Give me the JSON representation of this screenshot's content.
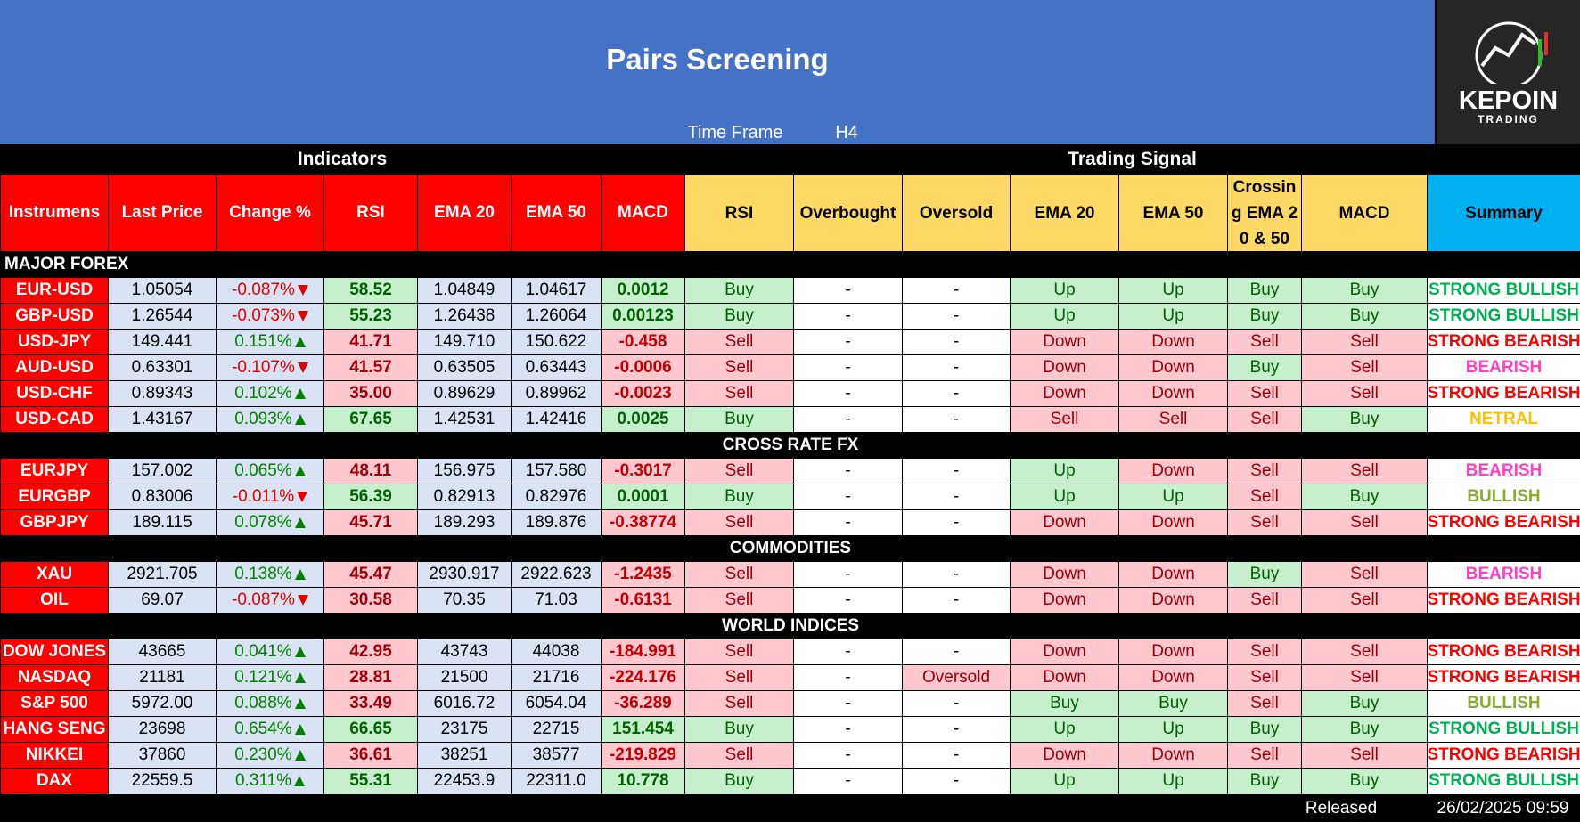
{
  "header": {
    "title": "Pairs Screening",
    "time_frame_label": "Time Frame",
    "time_frame": "H4",
    "logo": {
      "name": "KEPOIN",
      "tagline": "TRADING"
    }
  },
  "groups": {
    "indicators": "Indicators",
    "signals": "Trading Signal"
  },
  "columns": {
    "indicators": [
      "Instrumens",
      "Last Price",
      "Change %",
      "RSI",
      "EMA 20",
      "EMA 50",
      "MACD"
    ],
    "signals": [
      "RSI",
      "Overbought",
      "Oversold",
      "EMA 20",
      "EMA 50",
      "Crossing EMA 20 & 50",
      "MACD",
      "Summary"
    ]
  },
  "colors": {
    "indicator_header": "#ff0000",
    "signal_header": "#ffd966",
    "summary_header": "#00b0f0",
    "instrument": "#ff0000",
    "value_cell": "#dae3f3",
    "positive_bg": "#c6efce",
    "positive_fg": "#006100",
    "negative_bg": "#ffc7ce",
    "negative_fg": "#c00000",
    "up_text": "#008000",
    "down_text": "#e00000"
  },
  "signal_colors": {
    "Buy": [
      "#c6efce",
      "#006100"
    ],
    "Up": [
      "#c6efce",
      "#006100"
    ],
    "Sell": [
      "#ffc7ce",
      "#9c0006"
    ],
    "Down": [
      "#ffc7ce",
      "#9c0006"
    ],
    "Oversold": [
      "#ffc7ce",
      "#9c0006"
    ],
    "-": [
      "#ffffff",
      "#000000"
    ]
  },
  "summary_colors": {
    "STRONG BULLISH": "#00b050",
    "STRONG BEARISH": "#ff0000",
    "BEARISH": "#ff3fbf",
    "BULLISH": "#8aac2e",
    "NETRAL": "#ffc000"
  },
  "table": {
    "sections": [
      {
        "title": "MAJOR FOREX",
        "rows": [
          {
            "instrument": "EUR-USD",
            "last_price": "1.05054",
            "change": "-0.087%",
            "rsi": "58.52",
            "ema20": "1.04849",
            "ema50": "1.04617",
            "macd": "0.0012",
            "signals": [
              "Buy",
              "-",
              "-",
              "Up",
              "Up",
              "Buy",
              "Buy"
            ],
            "summary": "STRONG BULLISH"
          },
          {
            "instrument": "GBP-USD",
            "last_price": "1.26544",
            "change": "-0.073%",
            "rsi": "55.23",
            "ema20": "1.26438",
            "ema50": "1.26064",
            "macd": "0.00123",
            "signals": [
              "Buy",
              "-",
              "-",
              "Up",
              "Up",
              "Buy",
              "Buy"
            ],
            "summary": "STRONG BULLISH"
          },
          {
            "instrument": "USD-JPY",
            "last_price": "149.441",
            "change": "0.151%",
            "rsi": "41.71",
            "ema20": "149.710",
            "ema50": "150.622",
            "macd": "-0.458",
            "signals": [
              "Sell",
              "-",
              "-",
              "Down",
              "Down",
              "Sell",
              "Sell"
            ],
            "summary": "STRONG BEARISH"
          },
          {
            "instrument": "AUD-USD",
            "last_price": "0.63301",
            "change": "-0.107%",
            "rsi": "41.57",
            "ema20": "0.63505",
            "ema50": "0.63443",
            "macd": "-0.0006",
            "signals": [
              "Sell",
              "-",
              "-",
              "Down",
              "Down",
              "Buy",
              "Sell"
            ],
            "summary": "BEARISH"
          },
          {
            "instrument": "USD-CHF",
            "last_price": "0.89343",
            "change": "0.102%",
            "rsi": "35.00",
            "ema20": "0.89629",
            "ema50": "0.89962",
            "macd": "-0.0023",
            "signals": [
              "Sell",
              "-",
              "-",
              "Down",
              "Down",
              "Sell",
              "Sell"
            ],
            "summary": "STRONG BEARISH"
          },
          {
            "instrument": "USD-CAD",
            "last_price": "1.43167",
            "change": "0.093%",
            "rsi": "67.65",
            "ema20": "1.42531",
            "ema50": "1.42416",
            "macd": "0.0025",
            "signals": [
              "Buy",
              "-",
              "-",
              "Sell",
              "Sell",
              "Sell",
              "Buy"
            ],
            "summary": "NETRAL"
          }
        ]
      },
      {
        "title": "CROSS RATE FX",
        "rows": [
          {
            "instrument": "EURJPY",
            "last_price": "157.002",
            "change": "0.065%",
            "rsi": "48.11",
            "ema20": "156.975",
            "ema50": "157.580",
            "macd": "-0.3017",
            "signals": [
              "Sell",
              "-",
              "-",
              "Up",
              "Down",
              "Sell",
              "Sell"
            ],
            "summary": "BEARISH"
          },
          {
            "instrument": "EURGBP",
            "last_price": "0.83006",
            "change": "-0.011%",
            "rsi": "56.39",
            "ema20": "0.82913",
            "ema50": "0.82976",
            "macd": "0.0001",
            "signals": [
              "Buy",
              "-",
              "-",
              "Up",
              "Up",
              "Sell",
              "Buy"
            ],
            "summary": "BULLISH"
          },
          {
            "instrument": "GBPJPY",
            "last_price": "189.115",
            "change": "0.078%",
            "rsi": "45.71",
            "ema20": "189.293",
            "ema50": "189.876",
            "macd": "-0.38774",
            "signals": [
              "Sell",
              "-",
              "-",
              "Down",
              "Down",
              "Sell",
              "Sell"
            ],
            "summary": "STRONG BEARISH"
          }
        ]
      },
      {
        "title": "COMMODITIES",
        "rows": [
          {
            "instrument": "XAU",
            "last_price": "2921.705",
            "change": "0.138%",
            "rsi": "45.47",
            "ema20": "2930.917",
            "ema50": "2922.623",
            "macd": "-1.2435",
            "signals": [
              "Sell",
              "-",
              "-",
              "Down",
              "Down",
              "Buy",
              "Sell"
            ],
            "summary": "BEARISH"
          },
          {
            "instrument": "OIL",
            "last_price": "69.07",
            "change": "-0.087%",
            "rsi": "30.58",
            "ema20": "70.35",
            "ema50": "71.03",
            "macd": "-0.6131",
            "signals": [
              "Sell",
              "-",
              "-",
              "Down",
              "Down",
              "Sell",
              "Sell"
            ],
            "summary": "STRONG BEARISH"
          }
        ]
      },
      {
        "title": "WORLD INDICES",
        "rows": [
          {
            "instrument": "DOW JONES",
            "last_price": "43665",
            "change": "0.041%",
            "rsi": "42.95",
            "ema20": "43743",
            "ema50": "44038",
            "macd": "-184.991",
            "signals": [
              "Sell",
              "-",
              "-",
              "Down",
              "Down",
              "Sell",
              "Sell"
            ],
            "summary": "STRONG BEARISH"
          },
          {
            "instrument": "NASDAQ",
            "last_price": "21181",
            "change": "0.121%",
            "rsi": "28.81",
            "ema20": "21500",
            "ema50": "21716",
            "macd": "-224.176",
            "signals": [
              "Sell",
              "-",
              "Oversold",
              "Down",
              "Down",
              "Sell",
              "Sell"
            ],
            "summary": "STRONG BEARISH"
          },
          {
            "instrument": "S&P 500",
            "last_price": "5972.00",
            "change": "0.088%",
            "rsi": "33.49",
            "ema20": "6016.72",
            "ema50": "6054.04",
            "macd": "-36.289",
            "signals": [
              "Sell",
              "-",
              "-",
              "Buy",
              "Buy",
              "Sell",
              "Buy"
            ],
            "summary": "BULLISH"
          },
          {
            "instrument": "HANG SENG",
            "last_price": "23698",
            "change": "0.654%",
            "rsi": "66.65",
            "ema20": "23175",
            "ema50": "22715",
            "macd": "151.454",
            "signals": [
              "Buy",
              "-",
              "-",
              "Up",
              "Up",
              "Buy",
              "Buy"
            ],
            "summary": "STRONG BULLISH"
          },
          {
            "instrument": "NIKKEI",
            "last_price": "37860",
            "change": "0.230%",
            "rsi": "36.61",
            "ema20": "38251",
            "ema50": "38577",
            "macd": "-219.829",
            "signals": [
              "Sell",
              "-",
              "-",
              "Down",
              "Down",
              "Sell",
              "Sell"
            ],
            "summary": "STRONG BEARISH"
          },
          {
            "instrument": "DAX",
            "last_price": "22559.5",
            "change": "0.311%",
            "rsi": "55.31",
            "ema20": "22453.9",
            "ema50": "22311.0",
            "macd": "10.778",
            "signals": [
              "Buy",
              "-",
              "-",
              "Up",
              "Up",
              "Buy",
              "Buy"
            ],
            "summary": "STRONG BULLISH"
          }
        ]
      }
    ]
  },
  "footer": {
    "label": "Released",
    "timestamp": "26/02/2025 09:59"
  }
}
